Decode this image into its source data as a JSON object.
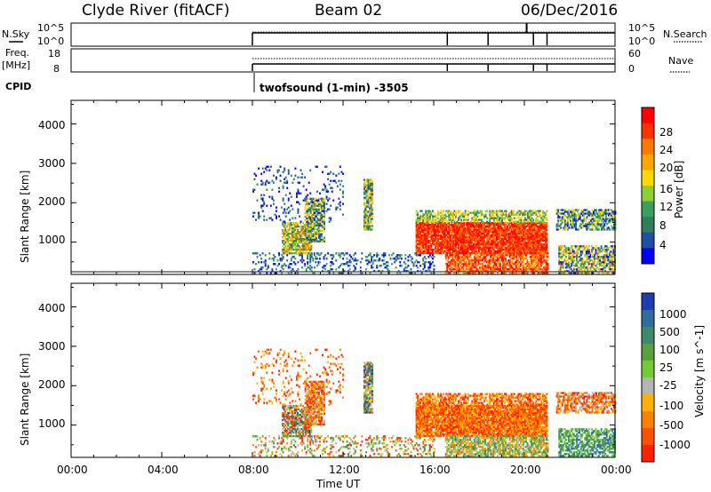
{
  "header": {
    "station": "Clyde River (fitACF)",
    "beam": "Beam 02",
    "date": "06/Dec/2016"
  },
  "strip_panels": {
    "nsky_label": "N.Sky",
    "nsky_ticks": [
      "10^5",
      "10^0"
    ],
    "freq_label_1": "Freq.",
    "freq_label_2": "[MHz]",
    "freq_ticks": [
      "18",
      "8"
    ],
    "cpid_label": "CPID",
    "right_ticks_top": [
      "10^5",
      "10^0"
    ],
    "right_ticks_bottom": [
      "60",
      "0"
    ],
    "nsearch_label": "N.Search",
    "nave_label": "Nave",
    "cpid_text": "twofsound (1-min) -3505"
  },
  "chart_data": [
    {
      "type": "heatmap",
      "name": "power",
      "ylabel": "Slant Range [km]",
      "y_ticks": [
        "1000",
        "2000",
        "3000",
        "4000"
      ],
      "ylim": [
        180,
        4600
      ],
      "colorbar_label": "Power [dB]",
      "colorbar_ticks": [
        "28",
        "24",
        "20",
        "16",
        "12",
        "8",
        "4"
      ],
      "colorbar_colors": [
        "#ff0000",
        "#ff3000",
        "#ff7800",
        "#ffa500",
        "#ffd800",
        "#8ccf30",
        "#3aa060",
        "#2e7d5b",
        "#1e4fa0",
        "#0000ff"
      ]
    },
    {
      "type": "heatmap",
      "name": "velocity",
      "ylabel": "Slant Range [km]",
      "y_ticks": [
        "1000",
        "2000",
        "3000",
        "4000"
      ],
      "ylim": [
        180,
        4600
      ],
      "colorbar_label": "Velocity [m s^-1]",
      "colorbar_ticks": [
        "1000",
        "500",
        "100",
        "25",
        "-25",
        "-100",
        "-500",
        "-1000"
      ],
      "colorbar_colors": [
        "#1a3fb0",
        "#2e6da0",
        "#3c8a6a",
        "#5aa040",
        "#70cc30",
        "#b4b4b4",
        "#ffb000",
        "#ff8000",
        "#ff5000",
        "#ff2000"
      ]
    }
  ],
  "x_axis": {
    "label": "Time UT",
    "ticks": [
      "00:00",
      "04:00",
      "08:00",
      "12:00",
      "16:00",
      "20:00",
      "00:00"
    ]
  }
}
